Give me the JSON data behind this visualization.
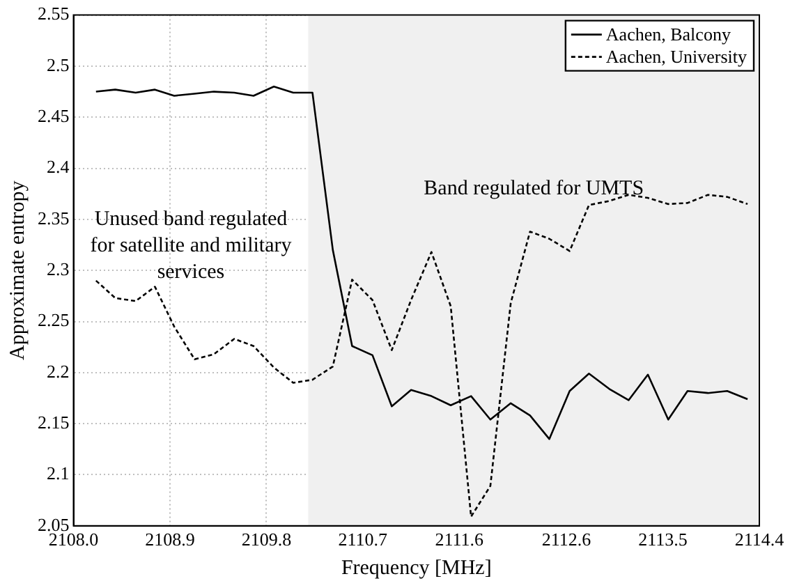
{
  "chart_data": {
    "type": "line",
    "xlabel": "Frequency [MHz]",
    "ylabel": "Approximate entropy",
    "x": [
      2108.21,
      2108.39,
      2108.58,
      2108.76,
      2108.94,
      2109.13,
      2109.31,
      2109.5,
      2109.68,
      2109.87,
      2110.05,
      2110.23,
      2110.42,
      2110.6,
      2110.79,
      2110.97,
      2111.15,
      2111.34,
      2111.52,
      2111.71,
      2111.89,
      2112.08,
      2112.26,
      2112.44,
      2112.63,
      2112.81,
      2113.0,
      2113.18,
      2113.36,
      2113.55,
      2113.73,
      2113.92,
      2114.1,
      2114.29
    ],
    "series": [
      {
        "name": "Aachen, Balcony",
        "color": "#000000",
        "line_style": "solid",
        "values": [
          2.475,
          2.477,
          2.474,
          2.477,
          2.471,
          2.473,
          2.475,
          2.474,
          2.471,
          2.48,
          2.474,
          2.474,
          2.32,
          2.226,
          2.217,
          2.167,
          2.183,
          2.177,
          2.168,
          2.177,
          2.154,
          2.17,
          2.158,
          2.135,
          2.182,
          2.199,
          2.184,
          2.173,
          2.198,
          2.154,
          2.182,
          2.18,
          2.182,
          2.174
        ]
      },
      {
        "name": "Aachen, University",
        "color": "#000000",
        "line_style": "dashed",
        "values": [
          2.29,
          2.273,
          2.27,
          2.284,
          2.245,
          2.213,
          2.218,
          2.233,
          2.226,
          2.205,
          2.19,
          2.193,
          2.206,
          2.291,
          2.271,
          2.222,
          2.271,
          2.318,
          2.265,
          2.059,
          2.089,
          2.268,
          2.338,
          2.331,
          2.319,
          2.364,
          2.368,
          2.374,
          2.371,
          2.365,
          2.366,
          2.374,
          2.372,
          2.365
        ]
      }
    ],
    "xlim": [
      2108.0,
      2114.4
    ],
    "xticks": [
      {
        "value": 2108.0,
        "label": "2108.0"
      },
      2108.9,
      2109.8,
      2110.7,
      2111.6,
      2112.6,
      2113.5,
      2114.4
    ],
    "ylim": [
      2.05,
      2.55
    ],
    "yticks": [
      2.05,
      2.1,
      2.15,
      2.2,
      2.25,
      2.3,
      2.35,
      2.4,
      2.45,
      2.5,
      2.55
    ],
    "bands": [
      {
        "axis": "x",
        "from": 2110.19,
        "to": 2114.4,
        "label": "Band regulated for UMTS",
        "color": "#f0f0f0"
      }
    ],
    "annotations": [
      "Unused band regulated for satellite and military services"
    ],
    "grid": true,
    "legend": "top right",
    "marker": "none"
  }
}
